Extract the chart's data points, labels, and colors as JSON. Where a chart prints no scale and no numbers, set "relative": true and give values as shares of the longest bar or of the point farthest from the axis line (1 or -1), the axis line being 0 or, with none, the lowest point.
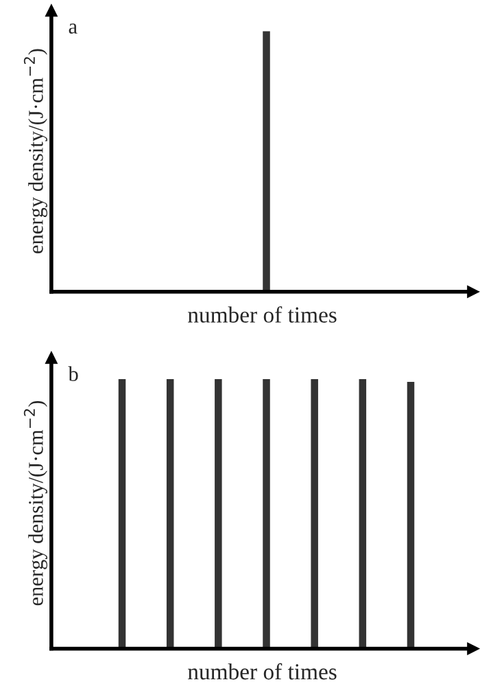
{
  "chart_data": [
    {
      "type": "bar",
      "title": "a",
      "xlabel": "number of times",
      "ylabel": "energy density/(J·cm$^{−2}$)",
      "relative": true,
      "color": "#333333",
      "categories": [
        null,
        null,
        null,
        null,
        null,
        null,
        null
      ],
      "values": [
        null,
        null,
        null,
        1,
        null,
        null,
        null
      ]
    },
    {
      "type": "bar",
      "title": "b",
      "xlabel": "number of times",
      "ylabel": "energy density/(J·cm$^{−2}$)",
      "relative": true,
      "color": "#333333",
      "categories": [
        null,
        null,
        null,
        null,
        null,
        null,
        null
      ],
      "values": [
        1,
        1,
        1,
        1,
        1,
        1,
        0.99
      ]
    }
  ]
}
